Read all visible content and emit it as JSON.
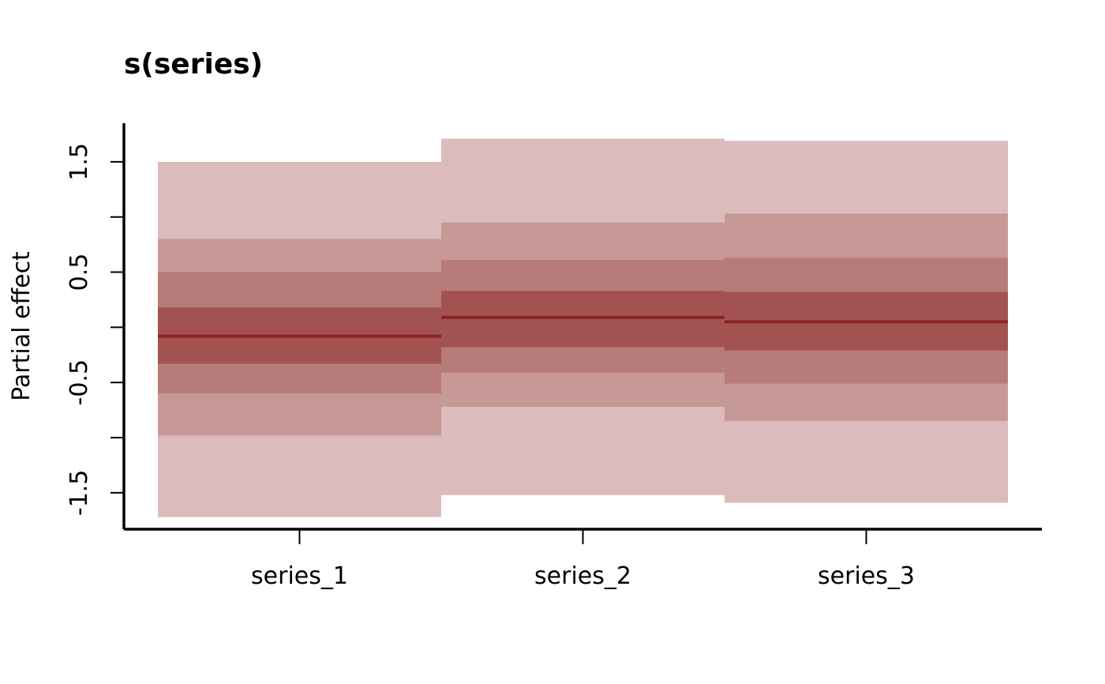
{
  "chart_data": {
    "type": "bar",
    "title": "s(series)",
    "xlabel": "",
    "ylabel": "Partial effect",
    "categories": [
      "series_1",
      "series_2",
      "series_3"
    ],
    "yticks": [
      -1.5,
      -1,
      -0.5,
      0,
      0.5,
      1,
      1.5
    ],
    "ytick_labels": [
      "-1.5",
      "",
      "-0.5",
      "",
      "0.5",
      "",
      "1.5"
    ],
    "ylim": [
      -1.83,
      1.85
    ],
    "median": [
      -0.08,
      0.09,
      0.05
    ],
    "bands": [
      {
        "name": "",
        "color": "#dcbbbd",
        "lower": [
          -1.72,
          -1.52,
          -1.59
        ],
        "upper": [
          1.5,
          1.71,
          1.69
        ]
      },
      {
        "name": "",
        "color": "#c69896",
        "lower": [
          -0.98,
          -0.72,
          -0.85
        ],
        "upper": [
          0.8,
          0.95,
          1.03
        ]
      },
      {
        "name": "",
        "color": "#b77b79",
        "lower": [
          -0.6,
          -0.41,
          -0.51
        ],
        "upper": [
          0.5,
          0.61,
          0.63
        ]
      },
      {
        "name": "",
        "color": "#a35252",
        "lower": [
          -0.33,
          -0.18,
          -0.21
        ],
        "upper": [
          0.18,
          0.33,
          0.32
        ]
      }
    ],
    "median_color": "#8b2222",
    "grid": false,
    "legend": "none"
  }
}
